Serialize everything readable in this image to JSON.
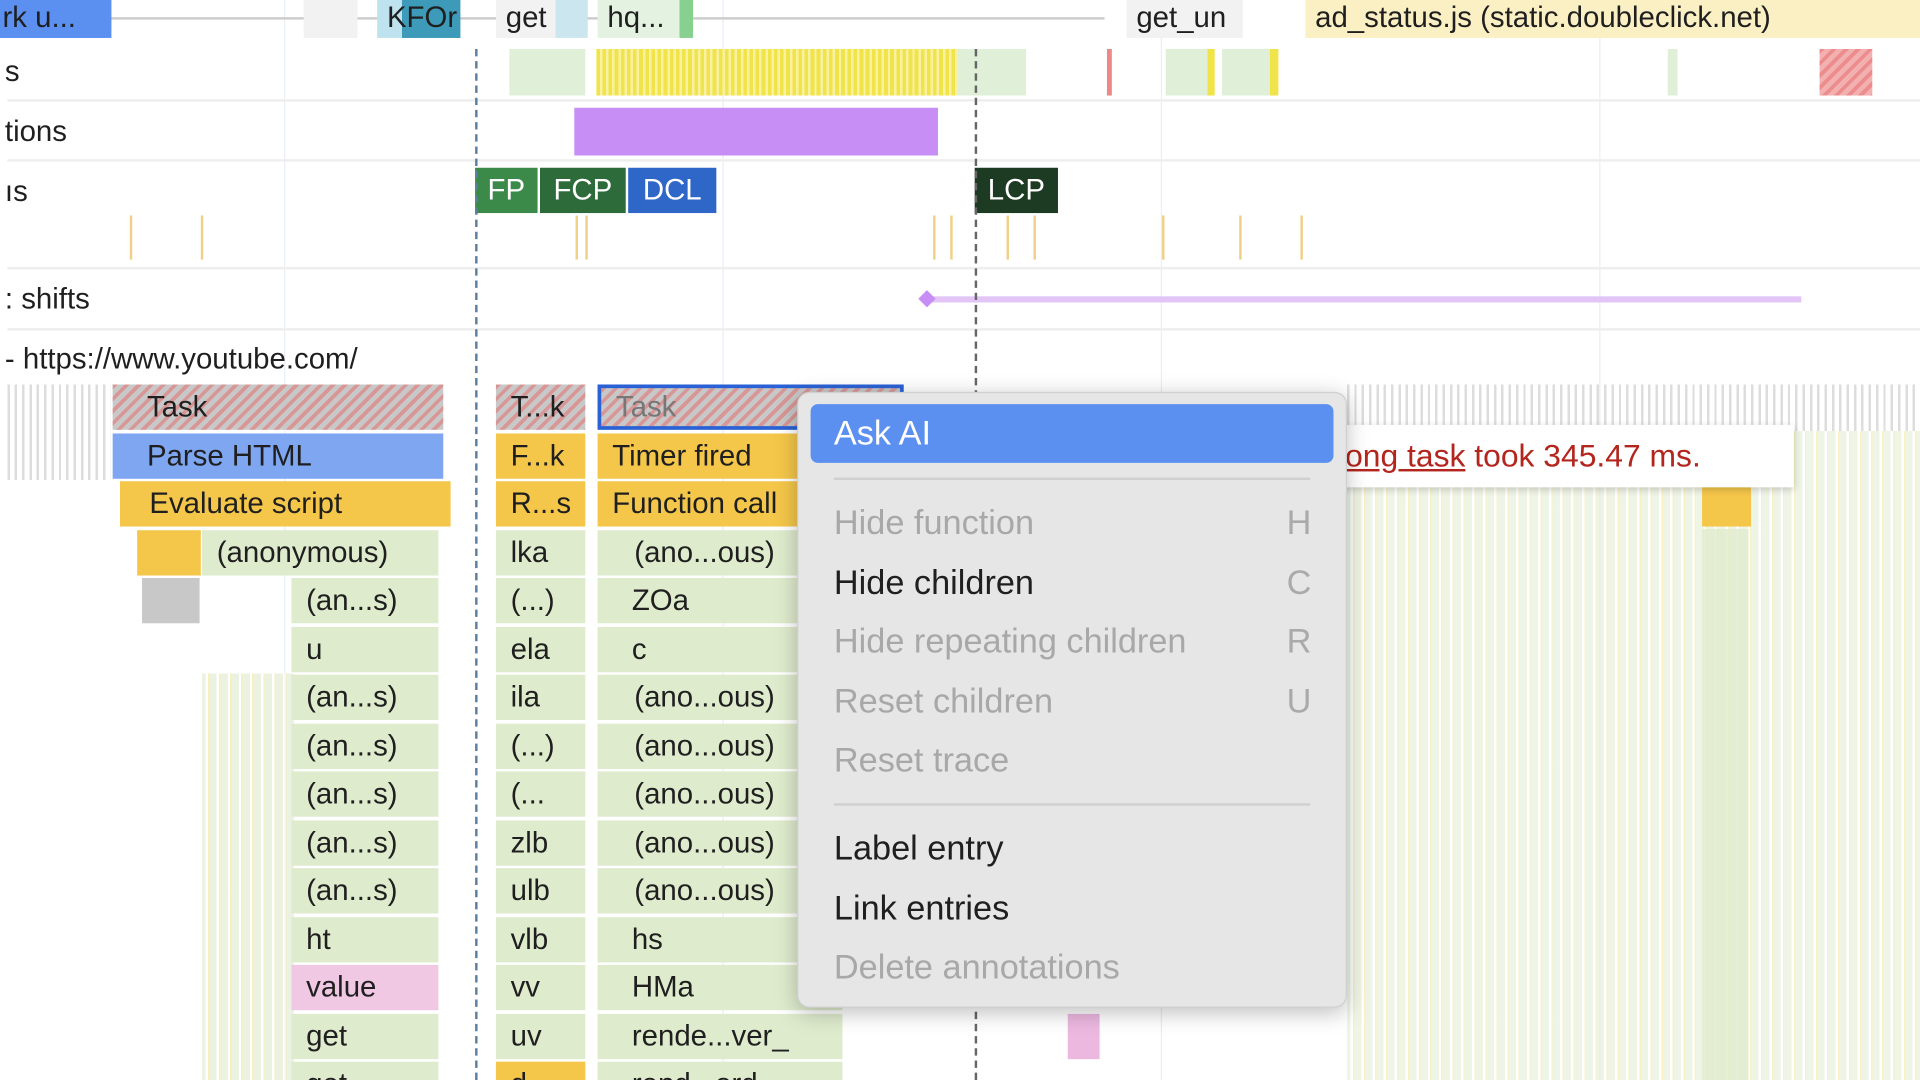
{
  "network_track": {
    "items": [
      "rk u...",
      "KFOr",
      "get",
      "hq...",
      "get_un",
      "ad_status.js (static.doubleclick.net)"
    ]
  },
  "track_labels": {
    "frames": "s",
    "interactions": "tions",
    "timings": "ıs",
    "layout_shifts": ": shifts",
    "main": "- https://www.youtube.com/"
  },
  "timings": {
    "fp": "FP",
    "fcp": "FCP",
    "dcl": "DCL",
    "lcp": "LCP"
  },
  "colors": {
    "fp": "#3c8a4a",
    "fcp": "#2e6b3a",
    "dcl": "#2f67c9",
    "lcp": "#1d3a22",
    "menu_highlight": "#5b8ff0",
    "interaction": "#c78ff5"
  },
  "flame": {
    "col1": [
      "Task",
      "Parse HTML",
      "Evaluate script",
      "(anonymous)",
      "(an...s)",
      "u",
      "(an...s)",
      "(an...s)",
      "(an...s)",
      "(an...s)",
      "(an...s)",
      "ht",
      "value",
      "get",
      "get"
    ],
    "col2": [
      "T...k",
      "F...k",
      "R...s",
      "lka",
      "(...)",
      "ela",
      "ila",
      "(...)",
      "(...",
      "zlb",
      "ulb",
      "vlb",
      "vv",
      "uv",
      "d"
    ],
    "col3": [
      "Task",
      "Timer fired",
      "Function call",
      "(ano...ous)",
      "ZOa",
      "c",
      "(ano...ous)",
      "(ano...ous)",
      "(ano...ous)",
      "(ano...ous)",
      "(ano...ous)",
      "hs",
      "HMa",
      "rende...ver_",
      "rend...ord"
    ]
  },
  "tooltip": {
    "link": "Long task",
    "text": " took 345.47 ms."
  },
  "context_menu": {
    "items": [
      {
        "label": "Ask AI",
        "shortcut": "",
        "state": "highlighted"
      },
      {
        "label": "Hide function",
        "shortcut": "H",
        "state": "disabled"
      },
      {
        "label": "Hide children",
        "shortcut": "C",
        "state": "enabled"
      },
      {
        "label": "Hide repeating children",
        "shortcut": "R",
        "state": "disabled"
      },
      {
        "label": "Reset children",
        "shortcut": "U",
        "state": "disabled"
      },
      {
        "label": "Reset trace",
        "shortcut": "",
        "state": "disabled"
      },
      {
        "label": "Label entry",
        "shortcut": "",
        "state": "enabled"
      },
      {
        "label": "Link entries",
        "shortcut": "",
        "state": "enabled"
      },
      {
        "label": "Delete annotations",
        "shortcut": "",
        "state": "disabled"
      }
    ]
  }
}
